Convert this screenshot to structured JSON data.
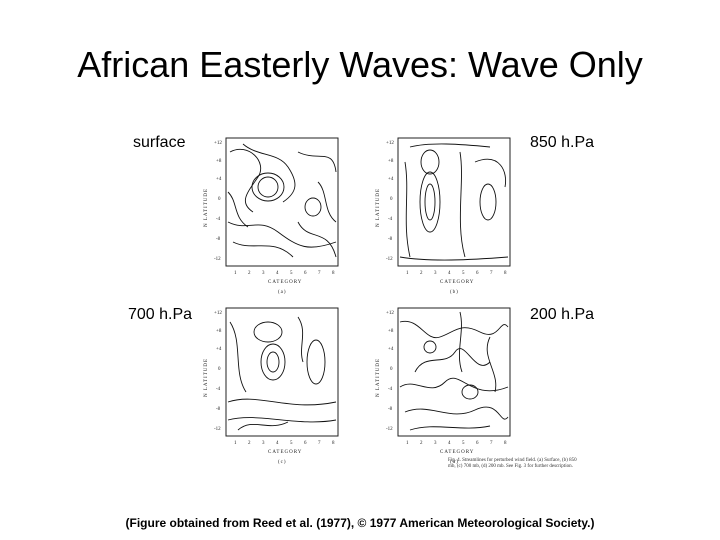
{
  "title": "African Easterly Waves: Wave Only",
  "labels": {
    "surface": "surface",
    "p850": "850 h.Pa",
    "p700": "700 h.Pa",
    "p200": "200 h.Pa"
  },
  "figure_caption": "Fig. 4. Streamlines for perturbed wind field. (a) Surface, (b) 850 mb, (c) 700 mb, (d) 200 mb. See Fig. 3 for further description.",
  "caption": "(Figure obtained from Reed et al. (1977), © 1977 American Meteorological Society.)",
  "panels": [
    {
      "id": "a",
      "letter": "(a)",
      "xlabel": "CATEGORY",
      "ylabel": "N LATITUDE"
    },
    {
      "id": "b",
      "letter": "(b)",
      "xlabel": "CATEGORY",
      "ylabel": "N LATITUDE"
    },
    {
      "id": "c",
      "letter": "(c)",
      "xlabel": "CATEGORY",
      "ylabel": "N LATITUDE"
    },
    {
      "id": "d",
      "letter": "(d)",
      "xlabel": "CATEGORY",
      "ylabel": "N LATITUDE"
    }
  ],
  "yticks": [
    "+12",
    "+8",
    "+4",
    "0",
    "-4",
    "-8",
    "-12"
  ],
  "xticks": [
    "1",
    "2",
    "3",
    "4",
    "5",
    "6",
    "7",
    "8"
  ]
}
